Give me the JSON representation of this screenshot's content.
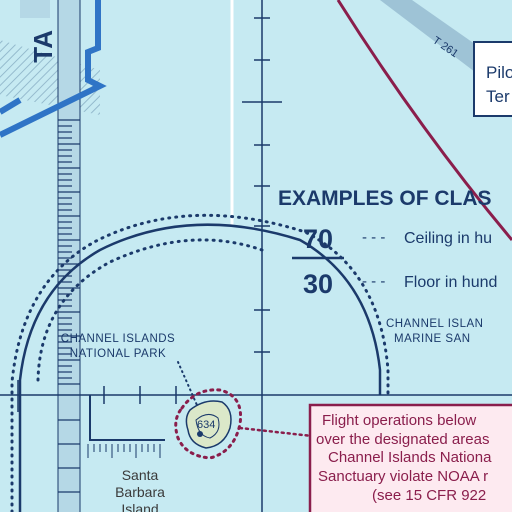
{
  "map": {
    "airway_label": "T 261",
    "sector_label": "TA",
    "examples_title": "EXAMPLES OF CLAS",
    "ceiling_value": "70",
    "floor_value": "30",
    "ceiling_legend": "Ceiling in hu",
    "floor_legend": "Floor in hund",
    "park_label_line1": "CHANNEL ISLANDS",
    "park_label_line2": "NATIONAL PARK",
    "sanctuary_label_line1": "CHANNEL ISLAN",
    "sanctuary_label_line2": "MARINE SAN",
    "island_name_line1": "Santa",
    "island_name_line2": "Barbara",
    "island_name_line3": "Island",
    "elevation": "634",
    "pilot_box_line1": "Pilo",
    "pilot_box_line2": "Ter",
    "notice_line1": "Flight operations below",
    "notice_line2": "over the designated areas",
    "notice_line3": "Channel Islands Nationa",
    "notice_line4": "Sanctuary violate NOAA r",
    "notice_line5": "(see 15 CFR 922",
    "colors": {
      "water": "#c6eaf2",
      "chart_blue": "#1b3a6b",
      "airway_band": "#9ec3d6",
      "vfr_route": "#2f74c6",
      "warning_maroon": "#8a1e4c",
      "notice_fill": "#fdeaf0",
      "island": "#dbe8c9"
    }
  }
}
